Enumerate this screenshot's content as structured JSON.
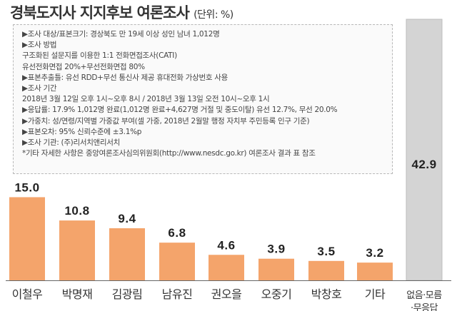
{
  "title": "경북도지사 지지후보 여론조사",
  "unit": "(단위: %)",
  "info_lines": [
    "▶조사 대상/표본크기: 경상북도 만 19세 이상 성인 남녀 1,012명",
    "▶조사 방법",
    "구조화된 설문지를 이용한 1:1 전화면접조사(CATI)",
    "유선전화면접 20%+무선전화면접 80%",
    "▶표본추출틀: 유선 RDD+무선 통신사 제공 휴대전화 가상번호 사용",
    "▶조사 기간",
    "2018년 3월 12일 오후 1시~오후 8시 / 2018년 3월 13일 오전 10시~오후 1시",
    "▶응답률: 17.9% 1,012명 완료(1,012명 완료+4,627명 거절 및 중도이탈) 유선 12.7%, 무선 20.0%",
    "▶가중치: 성/연령/지역별 가중값 부여(셀 가중, 2018년 2월말 행정 자치부 주민등록 인구 기준)",
    "▶표본오차: 95% 신뢰수준에 ±3.1%p",
    "▶조사 기관: (주)리서치앤리서치",
    "*기타 자세한 사항은 중앙여론조사심의위원회(http://www.nesdc.go.kr) 여론조사 결과 표 참조"
  ],
  "colors": {
    "bar": "#f4a46b",
    "bar_other": "#d4d4d4",
    "bar_other_edge": "#bdbdbd",
    "value": "#222222",
    "label": "#333333",
    "axis": "#666666"
  },
  "chart_data": {
    "type": "bar",
    "categories": [
      "이철우",
      "박명재",
      "김광림",
      "남유진",
      "권오을",
      "오중기",
      "박창호",
      "기타",
      "없음·모름\n·무응답"
    ],
    "values": [
      15.0,
      10.8,
      9.4,
      6.8,
      4.6,
      3.9,
      3.5,
      3.2,
      42.9
    ],
    "value_labels": [
      "15.0",
      "10.8",
      "9.4",
      "6.8",
      "4.6",
      "3.9",
      "3.5",
      "3.2",
      "42.9"
    ],
    "title": "경북도지사 지지후보 여론조사",
    "xlabel": "",
    "ylabel": "",
    "grid": false,
    "legend": "none"
  }
}
